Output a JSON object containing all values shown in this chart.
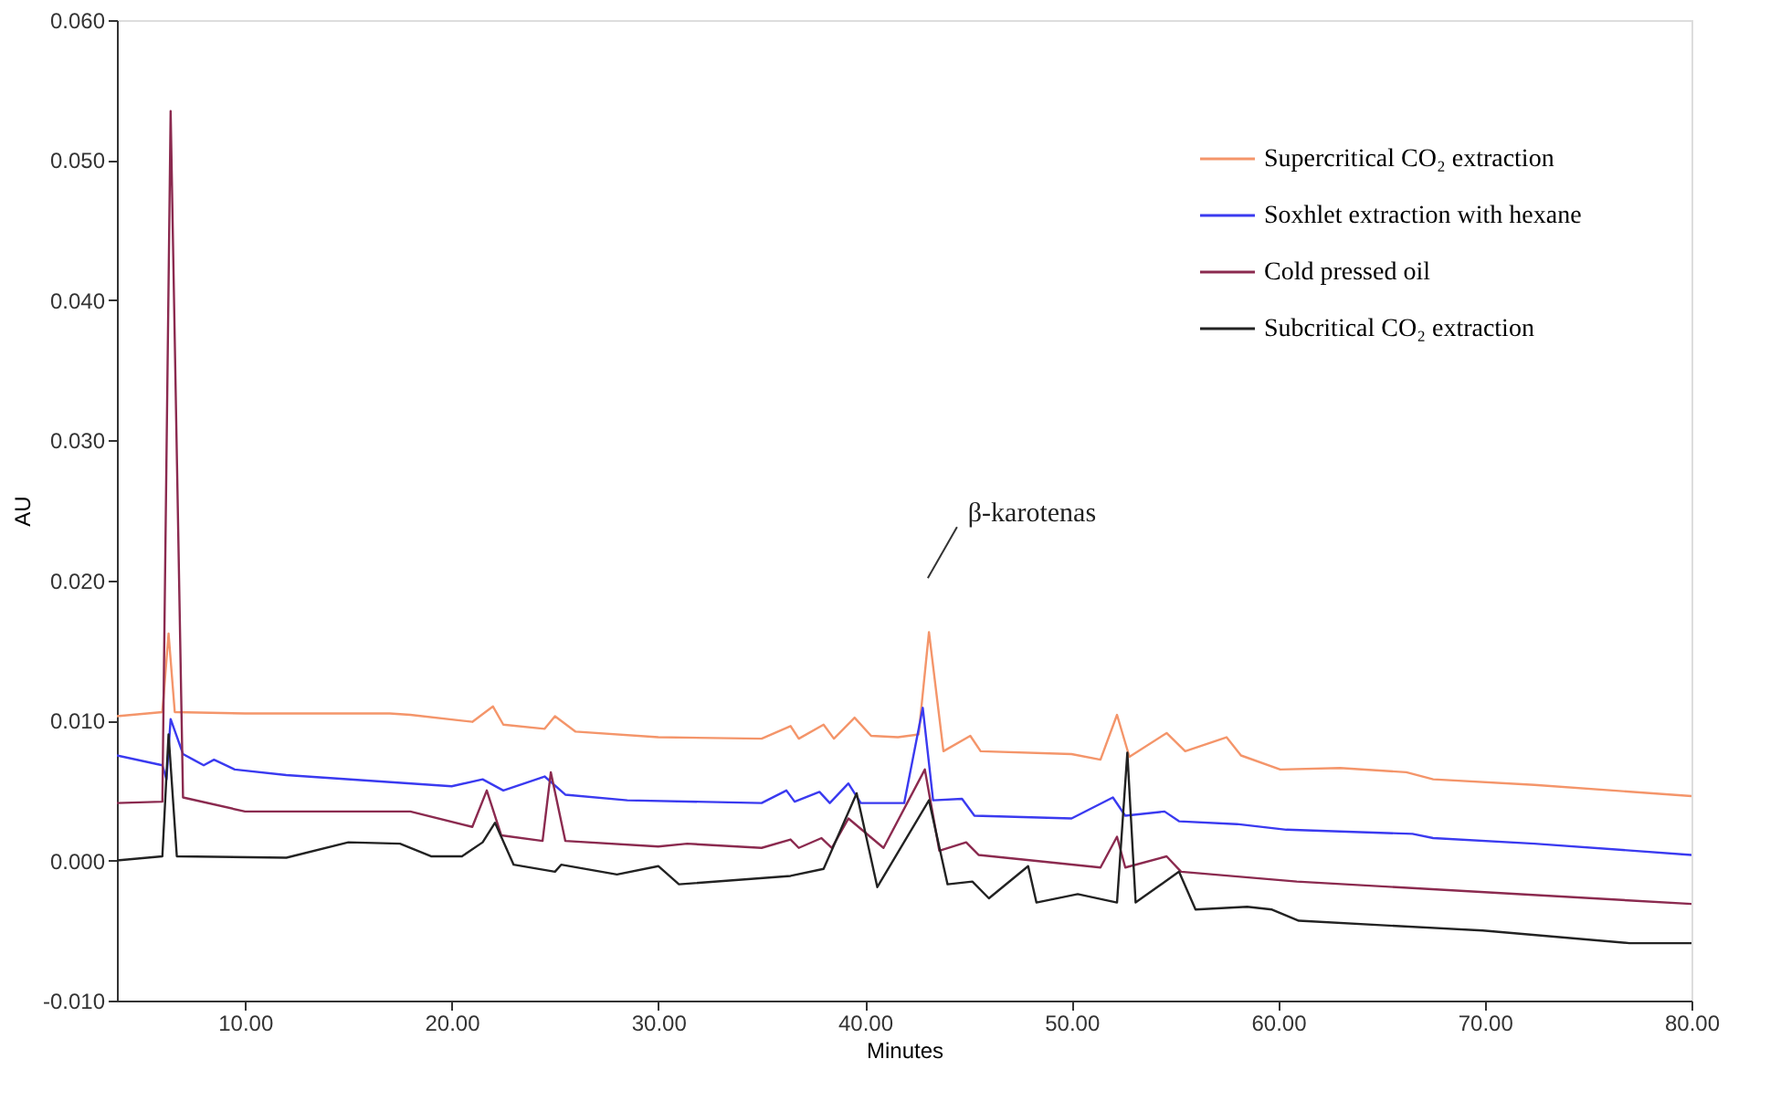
{
  "chart_data": {
    "type": "line",
    "xlabel": "Minutes",
    "ylabel": "AU",
    "xlim": [
      3.8,
      80
    ],
    "ylim": [
      -0.01,
      0.06
    ],
    "xticks": [
      {
        "value": 10,
        "label": "10.00"
      },
      {
        "value": 20,
        "label": "20.00"
      },
      {
        "value": 30,
        "label": "30.00"
      },
      {
        "value": 40,
        "label": "40.00"
      },
      {
        "value": 50,
        "label": "50.00"
      },
      {
        "value": 60,
        "label": "60.00"
      },
      {
        "value": 70,
        "label": "70.00"
      },
      {
        "value": 80,
        "label": "80.00"
      }
    ],
    "yticks": [
      {
        "value": -0.01,
        "label": "-0.010"
      },
      {
        "value": 0,
        "label": "0.000"
      },
      {
        "value": 0.01,
        "label": "0.010"
      },
      {
        "value": 0.02,
        "label": "0.020"
      },
      {
        "value": 0.03,
        "label": "0.030"
      },
      {
        "value": 0.04,
        "label": "0.040"
      },
      {
        "value": 0.05,
        "label": "0.050"
      },
      {
        "value": 0.06,
        "label": "0.060"
      }
    ],
    "grid": false,
    "legend": "top right",
    "line_style": "solid",
    "marker": "none",
    "annotations": [
      "β-karotenas"
    ],
    "series": [
      {
        "name": "Supercritical CO₂ extraction",
        "color": "#f4956a",
        "x": [
          3.8,
          6.0,
          6.3,
          6.6,
          10,
          17,
          18,
          21,
          22,
          22.5,
          24.5,
          25,
          26,
          30,
          35,
          36.4,
          36.8,
          38,
          38.5,
          39.5,
          40.3,
          41.6,
          42.6,
          43.1,
          43.8,
          45.1,
          45.6,
          50,
          51.4,
          52.2,
          52.8,
          54.6,
          55.5,
          57.5,
          58.2,
          60.1,
          63,
          66.2,
          67.5,
          72.4,
          80
        ],
        "values": [
          0.0103,
          0.0106,
          0.0162,
          0.0106,
          0.0105,
          0.0105,
          0.0104,
          0.0099,
          0.011,
          0.0097,
          0.0094,
          0.0103,
          0.0092,
          0.0088,
          0.0087,
          0.0096,
          0.0087,
          0.0097,
          0.0087,
          0.0102,
          0.0089,
          0.0088,
          0.009,
          0.0163,
          0.0078,
          0.0089,
          0.0078,
          0.0076,
          0.0072,
          0.0104,
          0.0074,
          0.0091,
          0.0078,
          0.0088,
          0.0075,
          0.0065,
          0.0066,
          0.0063,
          0.0058,
          0.0054,
          0.0046
        ]
      },
      {
        "name": "Soxhlet extraction with hexane",
        "color": "#3a3af0",
        "x": [
          3.8,
          6.0,
          6.2,
          6.4,
          7,
          7.5,
          8,
          8.5,
          9.5,
          12,
          20,
          21.5,
          22.5,
          24.5,
          25.5,
          28.5,
          35,
          36.2,
          36.6,
          37.8,
          38.3,
          39.2,
          39.8,
          41.9,
          42.8,
          43.3,
          44.7,
          45.3,
          50,
          52.0,
          52.6,
          54.5,
          55.2,
          58,
          60.4,
          66.5,
          67.5,
          72.4,
          80
        ],
        "values": [
          0.0075,
          0.0068,
          0.0058,
          0.0101,
          0.0076,
          0.0072,
          0.0068,
          0.0072,
          0.0065,
          0.0061,
          0.0053,
          0.0058,
          0.005,
          0.006,
          0.0047,
          0.0043,
          0.0041,
          0.005,
          0.0042,
          0.0049,
          0.0041,
          0.0055,
          0.0041,
          0.0041,
          0.0109,
          0.0043,
          0.0044,
          0.0032,
          0.003,
          0.0045,
          0.0032,
          0.0035,
          0.0028,
          0.0026,
          0.0022,
          0.0019,
          0.0016,
          0.0012,
          0.0004
        ]
      },
      {
        "name": "Cold pressed oil",
        "color": "#8b2a4f",
        "x": [
          3.8,
          6.0,
          6.4,
          7,
          10,
          18,
          21,
          21.7,
          22.4,
          24.4,
          24.8,
          25.5,
          30,
          31.4,
          35,
          36.4,
          36.8,
          37.9,
          38.4,
          39.2,
          40.9,
          42.9,
          43.6,
          44.9,
          45.5,
          51.4,
          52.2,
          52.6,
          54.6,
          55.3,
          60.9,
          80
        ],
        "values": [
          0.0041,
          0.0042,
          0.0535,
          0.0045,
          0.0035,
          0.0035,
          0.0024,
          0.005,
          0.0018,
          0.0014,
          0.0063,
          0.0014,
          0.001,
          0.0012,
          0.0009,
          0.0015,
          0.0009,
          0.0016,
          0.0009,
          0.003,
          0.0009,
          0.0065,
          0.0007,
          0.0013,
          0.0004,
          -0.0005,
          0.0017,
          -0.0005,
          0.0003,
          -0.0008,
          -0.0015,
          -0.0031
        ]
      },
      {
        "name": "Subcritical CO₂ extraction",
        "color": "#222222",
        "x": [
          3.8,
          6.0,
          6.3,
          6.7,
          12,
          15,
          17.5,
          19,
          20.5,
          21.5,
          22.1,
          23,
          25,
          25.3,
          28,
          30,
          31,
          36.4,
          38,
          39.6,
          40.6,
          43.1,
          44,
          45.2,
          46,
          47.9,
          48.3,
          50.3,
          52.2,
          52.7,
          53.1,
          55.2,
          56,
          58.5,
          59.7,
          61,
          69.9,
          77,
          80
        ],
        "values": [
          0.0,
          0.0003,
          0.009,
          0.0003,
          0.0002,
          0.0013,
          0.0012,
          0.0003,
          0.0003,
          0.0013,
          0.0027,
          -0.0003,
          -0.0008,
          -0.0003,
          -0.001,
          -0.0004,
          -0.0017,
          -0.0011,
          -0.0006,
          0.0048,
          -0.0019,
          0.0043,
          -0.0017,
          -0.0015,
          -0.0027,
          -0.0004,
          -0.003,
          -0.0024,
          -0.003,
          0.0077,
          -0.003,
          -0.0008,
          -0.0035,
          -0.0033,
          -0.0035,
          -0.0043,
          -0.005,
          -0.0059,
          -0.0059
        ]
      }
    ]
  }
}
